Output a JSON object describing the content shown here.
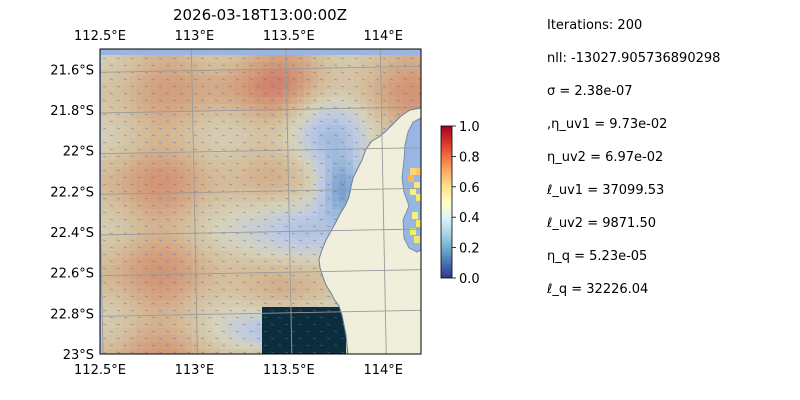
{
  "title": "2026-03-18T13:00:00Z",
  "map": {
    "lon_ticks": [
      "112.5°E",
      "113°E",
      "113.5°E",
      "114°E"
    ],
    "lat_ticks": [
      "21.6°S",
      "21.8°S",
      "22°S",
      "22.2°S",
      "22.4°S",
      "22.6°S",
      "22.8°S",
      "23°S"
    ],
    "lon_range": [
      112.5,
      114.2
    ],
    "lat_range": [
      -23.0,
      -21.5
    ],
    "grid": true,
    "land_color": "#efefdb",
    "ocean_color": "#97b6e1"
  },
  "colorbar": {
    "ticks": [
      "0.0",
      "0.2",
      "0.4",
      "0.6",
      "0.8",
      "1.0"
    ],
    "range": [
      0.0,
      1.0
    ],
    "colormap": "RdYlBu_r"
  },
  "params": [
    "Iterations: 200",
    "nll: -13027.905736890298",
    "σ = 2.38e-07",
    ",η_uv1 = 9.73e-02",
    "η_uv2 = 6.97e-02",
    "ℓ_uv1 = 37099.53",
    "ℓ_uv2 = 9871.50",
    "η_q = 5.23e-05",
    "ℓ_q = 32226.04"
  ]
}
